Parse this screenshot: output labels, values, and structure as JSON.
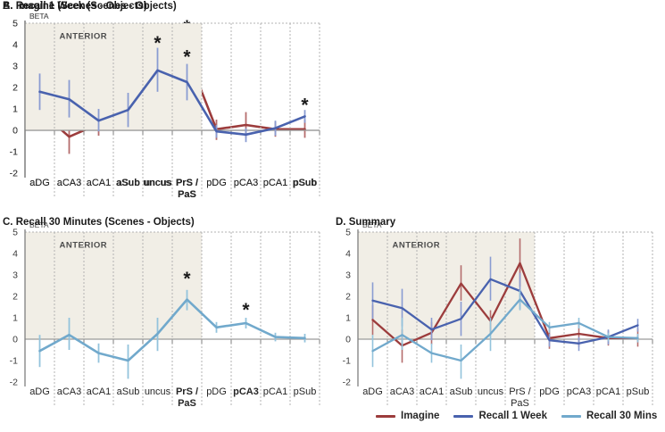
{
  "figure": {
    "background": "#ffffff",
    "y_axis_label": "BETA",
    "region_label": "ANTERIOR",
    "categories": [
      "aDG",
      "aCA3",
      "aCA1",
      "aSub",
      "uncus",
      "PrS /\nPaS",
      "pDG",
      "pCA3",
      "pCA1",
      "pSub"
    ],
    "anterior_category_count": 6,
    "ylim": [
      -2,
      5
    ],
    "yticks": [
      5,
      4,
      3,
      2,
      1,
      0,
      -1,
      -2
    ],
    "colors": {
      "imagine": "#9c3c3c",
      "imagine_err": "#b56d6d",
      "recall_1_week": "#4962ae",
      "recall_1_week_err": "#8a9cd2",
      "recall_30_mins": "#71a9cc",
      "recall_30_mins_err": "#93c3dc",
      "anterior_fill": "#f1eee6",
      "gridline": "#b3b3b3",
      "zero_axis": "#9a9a9a",
      "y_axis": "#7f7f7f",
      "tick": "#7f7f7f",
      "label_text": "#262626",
      "annotation_text": "#4d4d4d"
    }
  },
  "chart_data": [
    {
      "panel": "A",
      "type": "line",
      "title": "A. Imagine (Scenes - Objects)",
      "ylabel": "BETA",
      "ylim": [
        -2,
        5
      ],
      "series": [
        {
          "name": "Imagine",
          "color": "#9c3c3c",
          "err_color": "#b56d6d",
          "values": [
            0.9,
            -0.3,
            0.3,
            2.6,
            0.85,
            3.55,
            0.05,
            0.25,
            0.05,
            0.05
          ],
          "err_low": [
            0.2,
            -1.1,
            -0.25,
            1.8,
            0.3,
            2.45,
            -0.45,
            -0.35,
            -0.3,
            -0.35
          ],
          "err_high": [
            1.6,
            0.45,
            0.8,
            3.45,
            1.35,
            4.7,
            0.5,
            0.85,
            0.4,
            0.5
          ]
        }
      ],
      "bold_category_indices": [
        3,
        5
      ],
      "significance_markers": [
        {
          "category": "aSub",
          "index": 3,
          "y": 4.0
        },
        {
          "category": "PrS / PaS",
          "index": 5,
          "y": 5.0
        }
      ]
    },
    {
      "panel": "B",
      "type": "line",
      "title": "B. Recall 1 Week (Scenes - Objects)",
      "ylabel": "BETA",
      "ylim": [
        -2,
        5
      ],
      "series": [
        {
          "name": "Recall 1 Week",
          "color": "#4962ae",
          "err_color": "#8a9cd2",
          "values": [
            1.8,
            1.45,
            0.45,
            0.95,
            2.8,
            2.25,
            -0.05,
            -0.2,
            0.1,
            0.65
          ],
          "err_low": [
            0.95,
            0.6,
            -0.05,
            0.15,
            1.8,
            1.4,
            -0.35,
            -0.55,
            -0.25,
            0.35
          ],
          "err_high": [
            2.65,
            2.35,
            1.0,
            1.75,
            3.85,
            3.1,
            0.25,
            0.1,
            0.45,
            0.95
          ]
        }
      ],
      "bold_category_indices": [
        4,
        5,
        9
      ],
      "significance_markers": [
        {
          "category": "uncus",
          "index": 4,
          "y": 4.25
        },
        {
          "category": "PrS / PaS",
          "index": 5,
          "y": 3.6
        },
        {
          "category": "pSub",
          "index": 9,
          "y": 1.35
        }
      ]
    },
    {
      "panel": "C",
      "type": "line",
      "title": "C. Recall 30 Minutes (Scenes - Objects)",
      "ylabel": "BETA",
      "ylim": [
        -2,
        5
      ],
      "series": [
        {
          "name": "Recall 30 Mins",
          "color": "#71a9cc",
          "err_color": "#93c3dc",
          "values": [
            -0.55,
            0.2,
            -0.65,
            -1.0,
            0.25,
            1.85,
            0.55,
            0.75,
            0.1,
            0.05
          ],
          "err_low": [
            -1.3,
            -0.5,
            -1.1,
            -1.85,
            -0.55,
            1.35,
            0.3,
            0.5,
            -0.1,
            -0.15
          ],
          "err_high": [
            0.2,
            1.0,
            -0.2,
            -0.25,
            1.0,
            2.3,
            0.8,
            1.0,
            0.3,
            0.25
          ]
        }
      ],
      "bold_category_indices": [
        5,
        7
      ],
      "significance_markers": [
        {
          "category": "PrS / PaS",
          "index": 5,
          "y": 3.0
        },
        {
          "category": "pCA3",
          "index": 7,
          "y": 1.55
        }
      ]
    },
    {
      "panel": "D",
      "type": "line",
      "title": "D. Summary",
      "ylabel": "BETA",
      "ylim": [
        -2,
        5
      ],
      "series": [
        {
          "name": "Imagine",
          "color": "#9c3c3c",
          "err_color": "#b56d6d",
          "values": [
            0.9,
            -0.3,
            0.3,
            2.6,
            0.85,
            3.55,
            0.05,
            0.25,
            0.05,
            0.05
          ],
          "err_low": [
            0.2,
            -1.1,
            -0.25,
            1.8,
            0.3,
            2.45,
            -0.45,
            -0.35,
            -0.3,
            -0.35
          ],
          "err_high": [
            1.6,
            0.45,
            0.8,
            3.45,
            1.35,
            4.7,
            0.5,
            0.85,
            0.4,
            0.5
          ]
        },
        {
          "name": "Recall 1 Week",
          "color": "#4962ae",
          "err_color": "#8a9cd2",
          "values": [
            1.8,
            1.45,
            0.45,
            0.95,
            2.8,
            2.25,
            -0.05,
            -0.2,
            0.1,
            0.65
          ],
          "err_low": [
            0.95,
            0.6,
            -0.05,
            0.15,
            1.8,
            1.4,
            -0.35,
            -0.55,
            -0.25,
            0.35
          ],
          "err_high": [
            2.65,
            2.35,
            1.0,
            1.75,
            3.85,
            3.1,
            0.25,
            0.1,
            0.45,
            0.95
          ]
        },
        {
          "name": "Recall 30 Mins",
          "color": "#71a9cc",
          "err_color": "#93c3dc",
          "values": [
            -0.55,
            0.2,
            -0.65,
            -1.0,
            0.25,
            1.85,
            0.55,
            0.75,
            0.1,
            0.05
          ],
          "err_low": [
            -1.3,
            -0.5,
            -1.1,
            -1.85,
            -0.55,
            1.35,
            0.3,
            0.5,
            -0.1,
            -0.15
          ],
          "err_high": [
            0.2,
            1.0,
            -0.2,
            -0.25,
            1.0,
            2.3,
            0.8,
            1.0,
            0.3,
            0.25
          ]
        }
      ],
      "bold_category_indices": [],
      "significance_markers": [],
      "legend": [
        "Imagine",
        "Recall 1 Week",
        "Recall 30 Mins"
      ]
    }
  ]
}
